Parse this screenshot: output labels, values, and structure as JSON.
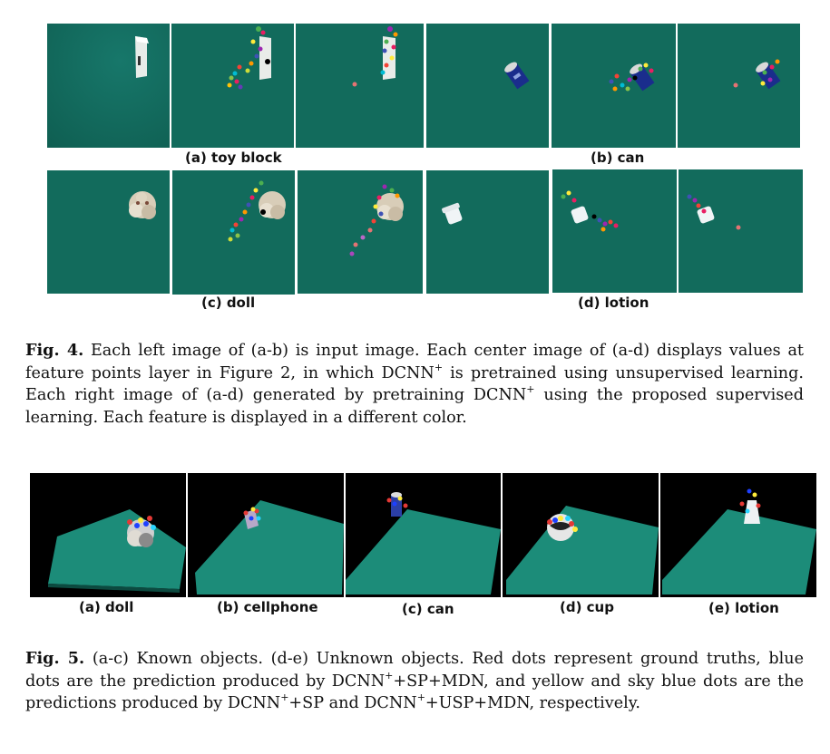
{
  "fig4": {
    "labels": {
      "a": "(a) toy block",
      "b": "(b) can",
      "c": "(c) doll",
      "d": "(d) lotion"
    },
    "caption": {
      "label": "Fig. 4.",
      "text": "Each left image of (a-b) is input image. Each center image of (a-d) displays values at feature points layer in Figure 2, in which DCNN",
      "sup": "+",
      "text2": " is pretrained using unsupervised learning. Each right image of (a-d) generated by pretraining DCNN",
      "sup2": "+",
      "text3": " using the proposed supervised learning. Each feature is displayed in a different color."
    }
  },
  "fig5": {
    "labels": {
      "a": "(a) doll",
      "b": "(b) cellphone",
      "c": "(c) can",
      "d": "(d) cup",
      "e": "(e) lotion"
    },
    "caption": {
      "label": "Fig. 5.",
      "p1": "(a-c) Known objects. (d-e) Unknown objects. Red dots represent ground truths, blue dots are the prediction produced by DCNN",
      "s1": "+",
      "p2": "+SP+MDN, and yellow and sky blue dots are the predictions produced by DCNN",
      "s2": "+",
      "p3": "+SP and DCNN",
      "s3": "+",
      "p4": "+USP+MDN, respectively."
    }
  },
  "colors": {
    "table_green": "#136a5a",
    "table_3d": "#1c8c79",
    "background_black": "#000000"
  }
}
